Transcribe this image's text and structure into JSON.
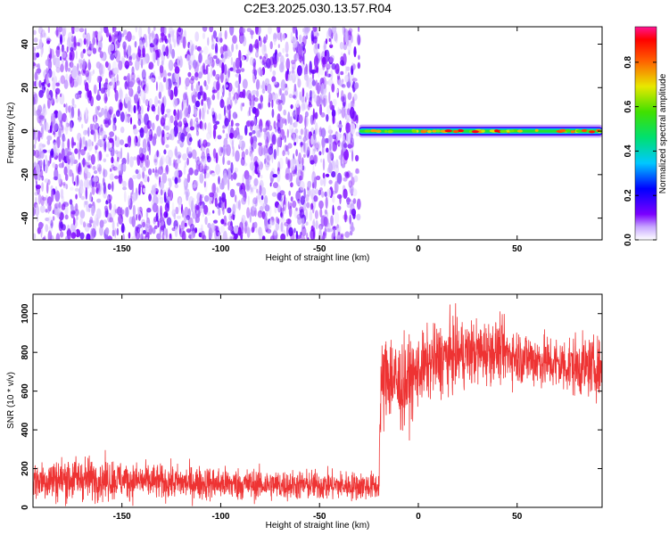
{
  "title": "C2E3.2025.030.13.57.R04",
  "colors": {
    "snr_line": "#ee3333",
    "spectrogram_noise": "#7b00ff",
    "axis": "#000000"
  },
  "chart_data": [
    {
      "type": "heatmap",
      "xlabel": "Height of straight line (km)",
      "ylabel": "Frequency (Hz)",
      "xlim": [
        -195,
        93
      ],
      "ylim": [
        -50,
        48
      ],
      "x_ticks": [
        "-150",
        "-100",
        "-50",
        "0",
        "50"
      ],
      "y_ticks": [
        "-40",
        "-20",
        "0",
        "20",
        "40"
      ],
      "grid": false,
      "colormap": "rainbow",
      "colorbar": {
        "label": "Normalized spectral amplitude",
        "range": [
          0.0,
          0.96
        ],
        "ticks": [
          "0.0",
          "0.2",
          "0.4",
          "0.6",
          "0.8"
        ]
      },
      "regions": [
        {
          "description_x_range": [
            -195,
            -30
          ],
          "frequency_range": [
            -50,
            48
          ],
          "amplitude_range": [
            0.0,
            0.15
          ]
        },
        {
          "description_x_range": [
            -30,
            93
          ],
          "frequency_range": [
            -2,
            2
          ],
          "amplitude_range": [
            0.2,
            0.96
          ]
        }
      ]
    },
    {
      "type": "line",
      "xlabel": "Height of straight line (km)",
      "ylabel": "SNR (10 * v/v)",
      "xlim": [
        -195,
        93
      ],
      "ylim": [
        0,
        1100
      ],
      "x_ticks": [
        "-150",
        "-100",
        "-50",
        "0",
        "50"
      ],
      "y_ticks": [
        "0",
        "200",
        "400",
        "600",
        "800",
        "1000"
      ],
      "grid": false,
      "series": [
        {
          "x": [
            -195,
            -180,
            -170,
            -150,
            -130,
            -110,
            -90,
            -70,
            -50,
            -30,
            -20,
            -19,
            -15,
            -10,
            -5,
            0,
            5,
            10,
            15,
            20,
            30,
            40,
            50,
            60,
            70,
            80,
            93
          ],
          "mean": [
            140,
            145,
            150,
            140,
            130,
            125,
            120,
            115,
            115,
            110,
            110,
            600,
            700,
            620,
            650,
            700,
            740,
            760,
            780,
            790,
            800,
            810,
            780,
            760,
            740,
            730,
            720
          ],
          "spread": [
            90,
            110,
            100,
            90,
            80,
            80,
            75,
            70,
            70,
            65,
            65,
            200,
            230,
            220,
            190,
            160,
            160,
            170,
            170,
            160,
            150,
            140,
            130,
            130,
            130,
            140,
            130
          ]
        }
      ]
    }
  ]
}
